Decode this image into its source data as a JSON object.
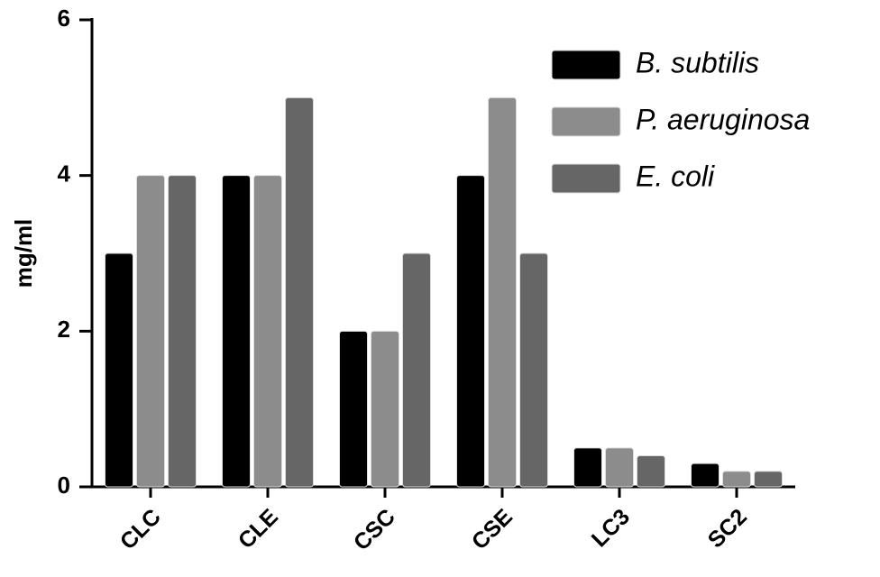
{
  "chart_data": {
    "type": "bar",
    "ylabel": "mg/ml",
    "categories": [
      "CLC",
      "CLE",
      "CSC",
      "CSE",
      "LC3",
      "SC2"
    ],
    "series": [
      {
        "name": "B. subtilis",
        "color": "#000000",
        "values": [
          3,
          4,
          2,
          4,
          0.5,
          0.3
        ]
      },
      {
        "name": "P. aeruginosa",
        "color": "#8c8c8c",
        "values": [
          4,
          4,
          2,
          5,
          0.5,
          0.2
        ]
      },
      {
        "name": "E. coli",
        "color": "#666666",
        "values": [
          4,
          5,
          3,
          3,
          0.4,
          0.2
        ]
      }
    ],
    "ylim": [
      0,
      6
    ],
    "yticks": [
      0,
      2,
      4,
      6
    ],
    "grid": false,
    "legend": "upper right"
  }
}
